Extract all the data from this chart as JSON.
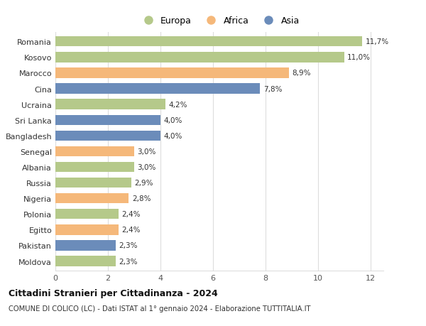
{
  "categories": [
    "Romania",
    "Kosovo",
    "Marocco",
    "Cina",
    "Ucraina",
    "Sri Lanka",
    "Bangladesh",
    "Senegal",
    "Albania",
    "Russia",
    "Nigeria",
    "Polonia",
    "Egitto",
    "Pakistan",
    "Moldova"
  ],
  "values": [
    11.7,
    11.0,
    8.9,
    7.8,
    4.2,
    4.0,
    4.0,
    3.0,
    3.0,
    2.9,
    2.8,
    2.4,
    2.4,
    2.3,
    2.3
  ],
  "labels": [
    "11,7%",
    "11,0%",
    "8,9%",
    "7,8%",
    "4,2%",
    "4,0%",
    "4,0%",
    "3,0%",
    "3,0%",
    "2,9%",
    "2,8%",
    "2,4%",
    "2,4%",
    "2,3%",
    "2,3%"
  ],
  "continents": [
    "Europa",
    "Europa",
    "Africa",
    "Asia",
    "Europa",
    "Asia",
    "Asia",
    "Africa",
    "Europa",
    "Europa",
    "Africa",
    "Europa",
    "Africa",
    "Asia",
    "Europa"
  ],
  "colors": {
    "Europa": "#b5c98a",
    "Africa": "#f5b87a",
    "Asia": "#6b8cba"
  },
  "title": "Cittadini Stranieri per Cittadinanza - 2024",
  "subtitle": "COMUNE DI COLICO (LC) - Dati ISTAT al 1° gennaio 2024 - Elaborazione TUTTITALIA.IT",
  "xlim": [
    0,
    12.5
  ],
  "xticks": [
    0,
    2,
    4,
    6,
    8,
    10,
    12
  ],
  "background_color": "#ffffff",
  "grid_color": "#dddddd"
}
